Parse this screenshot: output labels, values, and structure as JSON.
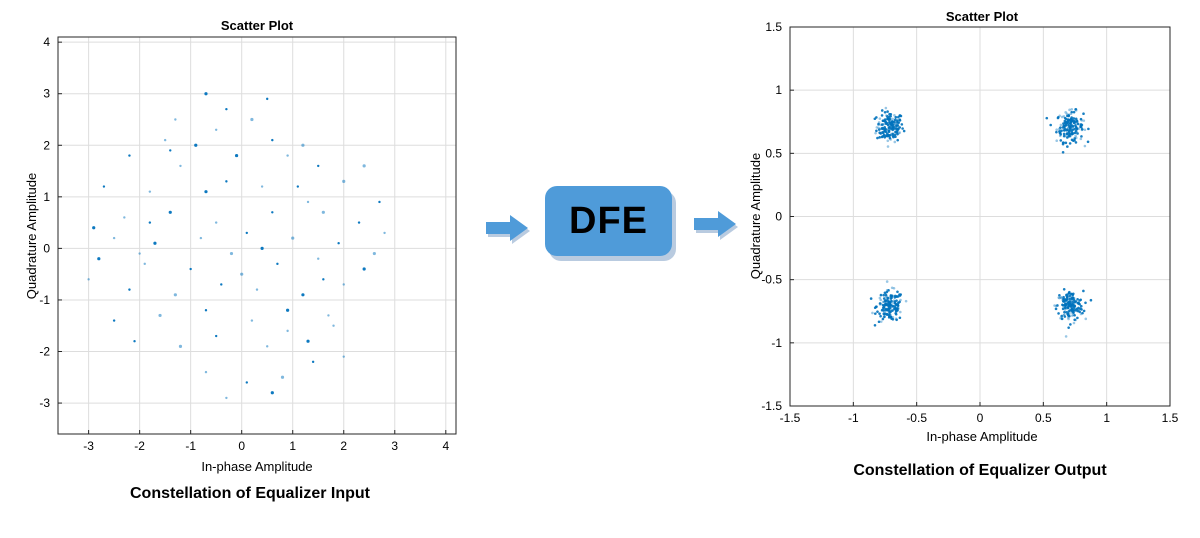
{
  "colors": {
    "marker": "#0072bd",
    "grid": "#dddddd",
    "axis": "#262626",
    "block": "#4f9bd9",
    "arrow": "#4f9bd9"
  },
  "block": {
    "label": "DFE"
  },
  "icons": {
    "arrow_in": "arrow-right-icon",
    "arrow_out": "arrow-right-icon"
  },
  "chart_data": [
    {
      "type": "scatter",
      "title": "Scatter Plot",
      "xlabel": "In-phase Amplitude",
      "ylabel": "Quadrature Amplitude",
      "caption": "Constellation of Equalizer Input",
      "xlim": [
        -3.6,
        4.2
      ],
      "ylim": [
        -3.6,
        4.1
      ],
      "xticks": [
        -3,
        -2,
        -1,
        0,
        1,
        2,
        3,
        4
      ],
      "yticks": [
        -3,
        -2,
        -1,
        0,
        1,
        2,
        3,
        4
      ],
      "grid": true,
      "series": [
        {
          "points": [
            [
              -0.7,
              3.0
            ],
            [
              -1.3,
              2.5
            ],
            [
              -0.3,
              2.7
            ],
            [
              0.2,
              2.5
            ],
            [
              0.5,
              2.9
            ],
            [
              -1.5,
              2.1
            ],
            [
              -0.9,
              2.0
            ],
            [
              -0.5,
              2.3
            ],
            [
              0.6,
              2.1
            ],
            [
              1.2,
              2.0
            ],
            [
              -2.2,
              1.8
            ],
            [
              -1.2,
              1.6
            ],
            [
              -0.1,
              1.8
            ],
            [
              0.9,
              1.8
            ],
            [
              1.5,
              1.6
            ],
            [
              2.4,
              1.6
            ],
            [
              -2.7,
              1.2
            ],
            [
              -1.8,
              1.1
            ],
            [
              -0.7,
              1.1
            ],
            [
              0.4,
              1.2
            ],
            [
              1.1,
              1.2
            ],
            [
              2.0,
              1.3
            ],
            [
              2.7,
              0.9
            ],
            [
              -2.3,
              0.6
            ],
            [
              -1.4,
              0.7
            ],
            [
              -0.5,
              0.5
            ],
            [
              0.6,
              0.7
            ],
            [
              1.6,
              0.7
            ],
            [
              2.3,
              0.5
            ],
            [
              -2.5,
              0.2
            ],
            [
              -1.7,
              0.1
            ],
            [
              -0.8,
              0.2
            ],
            [
              0.1,
              0.3
            ],
            [
              1.0,
              0.2
            ],
            [
              1.9,
              0.1
            ],
            [
              2.8,
              0.3
            ],
            [
              -2.8,
              -0.2
            ],
            [
              -1.9,
              -0.3
            ],
            [
              -1.0,
              -0.4
            ],
            [
              -0.2,
              -0.1
            ],
            [
              0.7,
              -0.3
            ],
            [
              1.5,
              -0.2
            ],
            [
              2.4,
              -0.4
            ],
            [
              -3.0,
              -0.6
            ],
            [
              -2.2,
              -0.8
            ],
            [
              -1.3,
              -0.9
            ],
            [
              -0.4,
              -0.7
            ],
            [
              0.3,
              -0.8
            ],
            [
              1.2,
              -0.9
            ],
            [
              2.0,
              -0.7
            ],
            [
              -2.5,
              -1.4
            ],
            [
              -1.6,
              -1.3
            ],
            [
              -0.7,
              -1.2
            ],
            [
              0.2,
              -1.4
            ],
            [
              0.9,
              -1.2
            ],
            [
              1.7,
              -1.3
            ],
            [
              -2.1,
              -1.8
            ],
            [
              -1.2,
              -1.9
            ],
            [
              -0.5,
              -1.7
            ],
            [
              0.5,
              -1.9
            ],
            [
              1.3,
              -1.8
            ],
            [
              -0.7,
              -2.4
            ],
            [
              0.1,
              -2.6
            ],
            [
              0.8,
              -2.5
            ],
            [
              1.4,
              -2.2
            ],
            [
              -0.3,
              -2.9
            ],
            [
              0.6,
              -2.8
            ],
            [
              2.0,
              -2.1
            ],
            [
              -1.8,
              0.5
            ],
            [
              0.0,
              -0.5
            ],
            [
              1.6,
              -0.6
            ],
            [
              -2.0,
              -0.1
            ],
            [
              0.4,
              0.0
            ],
            [
              1.3,
              0.9
            ],
            [
              -0.3,
              1.3
            ],
            [
              2.6,
              -0.1
            ],
            [
              -1.4,
              1.9
            ],
            [
              0.9,
              -1.6
            ],
            [
              -2.9,
              0.4
            ],
            [
              1.8,
              -1.5
            ]
          ]
        }
      ]
    },
    {
      "type": "scatter",
      "title": "Scatter Plot",
      "xlabel": "In-phase Amplitude",
      "ylabel": "Quadrature Amplitude",
      "caption": "Constellation of Equalizer Output",
      "xlim": [
        -1.5,
        1.5
      ],
      "ylim": [
        -1.5,
        1.5
      ],
      "xticks": [
        -1.5,
        -1,
        -0.5,
        0,
        0.5,
        1,
        1.5
      ],
      "yticks": [
        -1.5,
        -1,
        -0.5,
        0,
        0.5,
        1,
        1.5
      ],
      "grid": true,
      "clusters": [
        {
          "center": [
            -0.71,
            0.71
          ],
          "spread": 0.07
        },
        {
          "center": [
            0.71,
            0.71
          ],
          "spread": 0.07
        },
        {
          "center": [
            -0.71,
            -0.71
          ],
          "spread": 0.07
        },
        {
          "center": [
            0.71,
            -0.71
          ],
          "spread": 0.07
        }
      ]
    }
  ]
}
